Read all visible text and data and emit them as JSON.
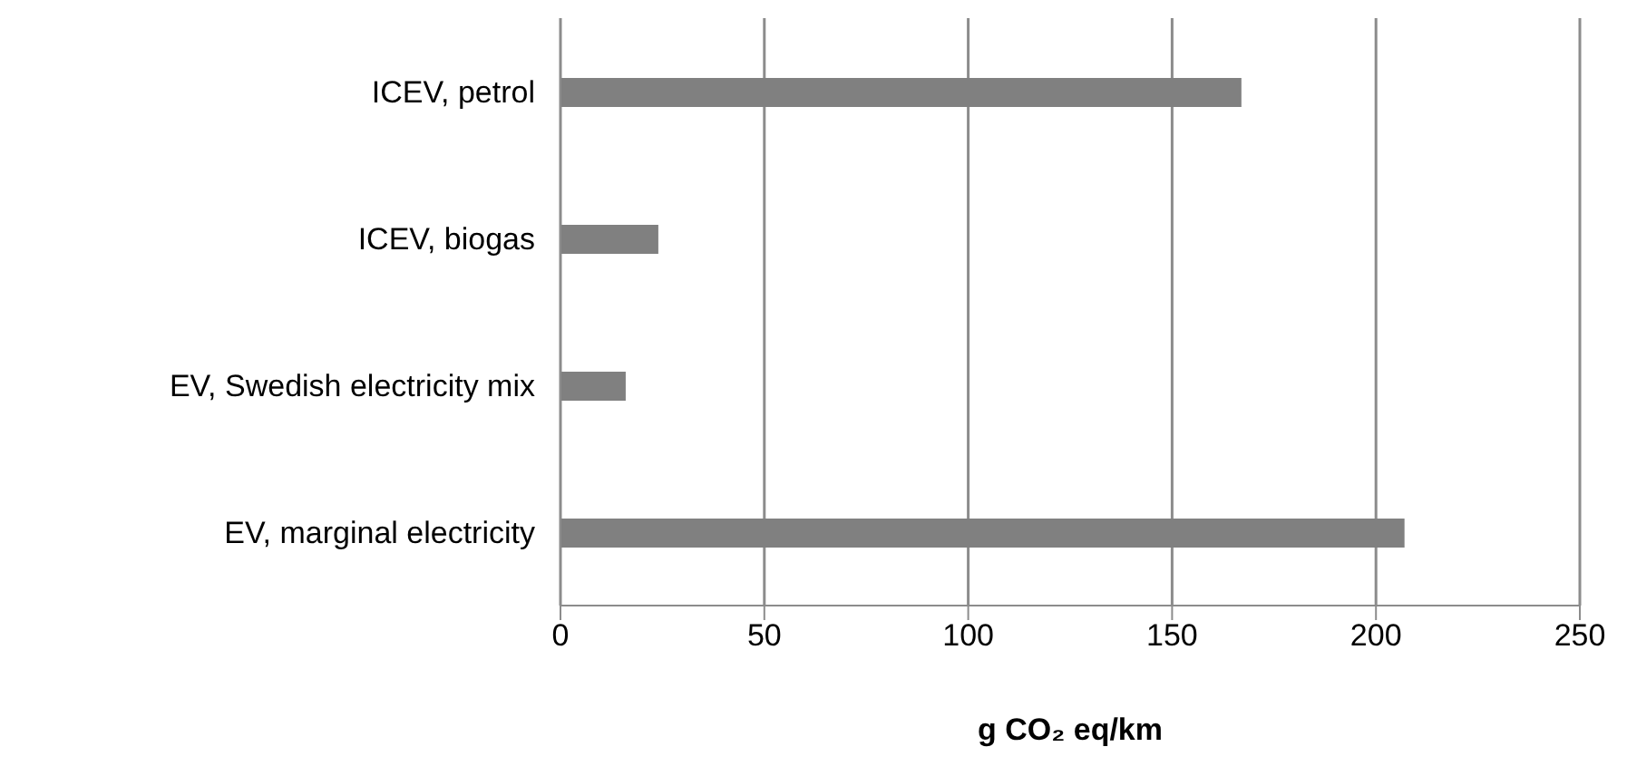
{
  "chart_data": {
    "type": "bar",
    "orientation": "horizontal",
    "xlabel": "g CO₂ eq/km",
    "categories": [
      "ICEV, petrol",
      "ICEV, biogas",
      "EV, Swedish electricity mix",
      "EV, marginal electricity"
    ],
    "values": [
      167,
      24,
      16,
      207
    ],
    "color": "#808080",
    "xlim": [
      0,
      250
    ],
    "xticks": [
      0,
      50,
      100,
      150,
      200,
      250
    ],
    "grid": "x",
    "legend": false
  }
}
